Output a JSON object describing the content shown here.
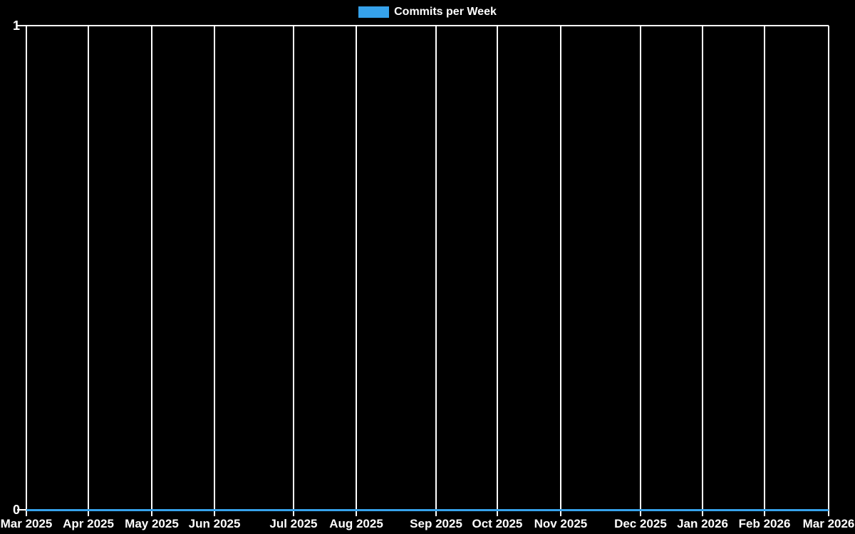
{
  "window": {
    "background": "#000000"
  },
  "legend": {
    "position": "top",
    "items": [
      {
        "label": "Commits per Week",
        "swatch_color": "#36a2eb"
      }
    ]
  },
  "chart_data": {
    "type": "line",
    "title": "",
    "xlabel": "",
    "ylabel": "",
    "ylim": [
      0,
      1
    ],
    "grid": true,
    "grid_color": "#ffffff",
    "text_color": "#ffffff",
    "legend_position": "top",
    "series": [
      {
        "name": "Commits per Week",
        "color": "#36a2eb",
        "values": [
          0,
          0,
          0,
          0,
          0,
          0,
          0,
          0,
          0,
          0,
          0,
          0,
          0
        ]
      }
    ],
    "x_ticks": [
      {
        "label": "Mar 2025",
        "pos": 0.0
      },
      {
        "label": "Apr 2025",
        "pos": 0.0773
      },
      {
        "label": "May 2025",
        "pos": 0.1563
      },
      {
        "label": "Jun 2025",
        "pos": 0.2345
      },
      {
        "label": "Jul 2025",
        "pos": 0.333
      },
      {
        "label": "Aug 2025",
        "pos": 0.4112
      },
      {
        "label": "Sep 2025",
        "pos": 0.5107
      },
      {
        "label": "Oct 2025",
        "pos": 0.587
      },
      {
        "label": "Nov 2025",
        "pos": 0.666
      },
      {
        "label": "Dec 2025",
        "pos": 0.7655
      },
      {
        "label": "Jan 2026",
        "pos": 0.8428
      },
      {
        "label": "Feb 2026",
        "pos": 0.9201
      },
      {
        "label": "Mar 2026",
        "pos": 1.0
      }
    ],
    "y_ticks": [
      {
        "label": "0",
        "value": 0
      },
      {
        "label": "1",
        "value": 1
      }
    ]
  }
}
